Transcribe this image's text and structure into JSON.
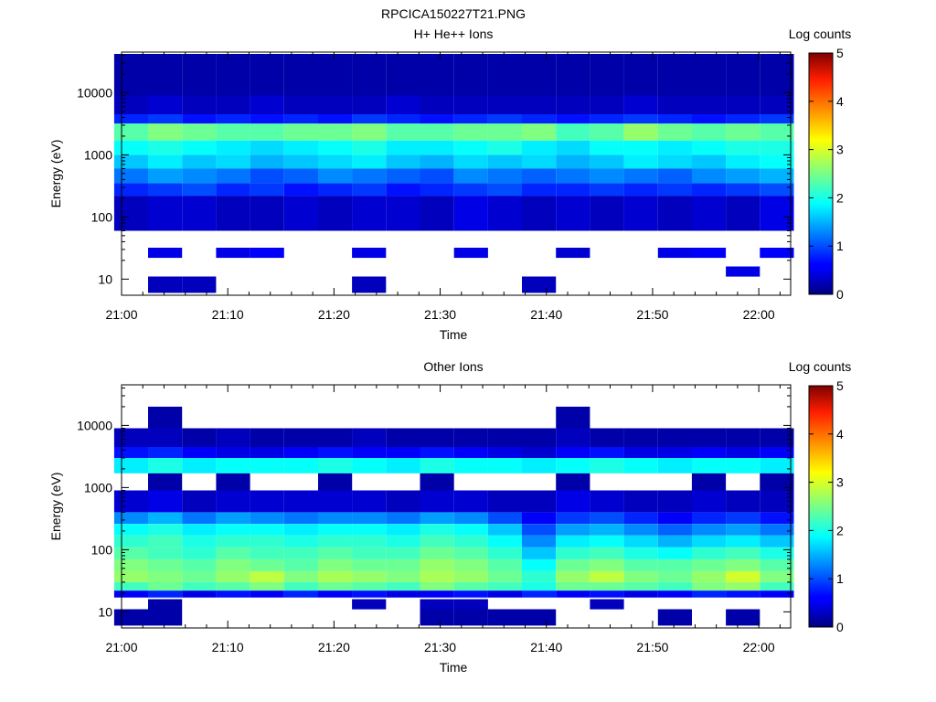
{
  "figure": {
    "title": "RPCICA150227T21.PNG"
  },
  "chart_data": [
    {
      "type": "heatmap",
      "title": "H+ He++ Ions",
      "xlabel": "Time",
      "ylabel": "Energy (eV)",
      "x_ticks": [
        "21:00",
        "21:10",
        "21:20",
        "21:30",
        "21:40",
        "21:50",
        "22:00"
      ],
      "y_ticks": [
        "10",
        "100",
        "1000",
        "10000"
      ],
      "y_scale": "log",
      "ylim": [
        5.5,
        45000
      ],
      "xlim_minutes": [
        0,
        63
      ],
      "colorbar": {
        "label": "Log counts",
        "ticks": [
          "0",
          "1",
          "2",
          "3",
          "4",
          "5"
        ],
        "range": [
          0,
          5
        ]
      },
      "time_columns_minutes": [
        0.9,
        4.1,
        7.3,
        10.5,
        13.7,
        16.9,
        20.1,
        23.3,
        26.5,
        29.7,
        32.9,
        36.1,
        39.3,
        42.5,
        45.7,
        48.9,
        52.1,
        55.3,
        58.5,
        61.7
      ],
      "bands": [
        {
          "from": 6,
          "to": 11,
          "log_counts": [
            -1,
            0.3,
            0.3,
            -1,
            -1,
            -1,
            -1,
            0.3,
            -1,
            -1,
            -1,
            -1,
            0.3,
            -1,
            -1,
            -1,
            -1,
            -1,
            -1,
            -1
          ]
        },
        {
          "from": 11,
          "to": 16,
          "log_counts": [
            -1,
            -1,
            -1,
            -1,
            -1,
            -1,
            -1,
            -1,
            -1,
            -1,
            -1,
            -1,
            -1,
            -1,
            -1,
            -1,
            -1,
            -1,
            0.5,
            -1
          ]
        },
        {
          "from": 22,
          "to": 32,
          "log_counts": [
            -1,
            0.5,
            -1,
            0.5,
            0.6,
            -1,
            -1,
            0.5,
            -1,
            -1,
            0.5,
            -1,
            -1,
            0.4,
            -1,
            -1,
            0.5,
            0.6,
            -1,
            0.6
          ]
        },
        {
          "from": 60,
          "to": 220,
          "log_counts": [
            0.3,
            0.4,
            0.4,
            0.3,
            0.3,
            0.4,
            0.3,
            0.4,
            0.4,
            0.3,
            0.5,
            0.4,
            0.3,
            0.4,
            0.3,
            0.4,
            0.3,
            0.4,
            0.3,
            0.5
          ]
        },
        {
          "from": 220,
          "to": 350,
          "log_counts": [
            0.8,
            0.9,
            1.0,
            0.8,
            0.9,
            0.7,
            0.8,
            0.9,
            0.7,
            0.8,
            0.9,
            1.0,
            0.8,
            0.8,
            0.9,
            0.8,
            0.9,
            0.8,
            0.9,
            1.0
          ]
        },
        {
          "from": 350,
          "to": 600,
          "log_counts": [
            1.2,
            1.4,
            1.3,
            1.2,
            1.0,
            1.1,
            1.3,
            1.2,
            1.1,
            1.0,
            1.3,
            1.2,
            1.1,
            1.2,
            1.3,
            1.2,
            1.1,
            1.3,
            1.4,
            1.5
          ]
        },
        {
          "from": 600,
          "to": 1000,
          "log_counts": [
            1.6,
            1.8,
            1.6,
            1.7,
            1.5,
            1.6,
            1.7,
            1.8,
            1.6,
            1.5,
            1.7,
            1.6,
            1.7,
            1.5,
            1.6,
            1.8,
            1.7,
            1.6,
            1.8,
            1.9
          ]
        },
        {
          "from": 1000,
          "to": 1700,
          "log_counts": [
            1.9,
            2.0,
            1.9,
            1.8,
            1.7,
            1.8,
            1.9,
            2.0,
            1.8,
            1.8,
            1.9,
            2.0,
            1.8,
            1.7,
            1.9,
            1.9,
            1.8,
            1.9,
            2.0,
            2.0
          ]
        },
        {
          "from": 1700,
          "to": 3200,
          "log_counts": [
            2.3,
            2.5,
            2.4,
            2.3,
            2.3,
            2.4,
            2.4,
            2.5,
            2.3,
            2.3,
            2.4,
            2.4,
            2.5,
            2.2,
            2.3,
            2.6,
            2.4,
            2.3,
            2.4,
            2.3
          ]
        },
        {
          "from": 3200,
          "to": 4500,
          "log_counts": [
            0.8,
            0.9,
            0.7,
            0.8,
            0.7,
            0.8,
            0.7,
            0.9,
            0.8,
            0.7,
            0.8,
            0.9,
            0.8,
            0.7,
            0.8,
            0.9,
            0.8,
            0.7,
            0.8,
            0.9
          ]
        },
        {
          "from": 4500,
          "to": 9000,
          "log_counts": [
            0.3,
            0.4,
            0.3,
            0.3,
            0.4,
            0.3,
            0.3,
            0.3,
            0.4,
            0.3,
            0.3,
            0.3,
            0.3,
            0.3,
            0.3,
            0.4,
            0.3,
            0.3,
            0.3,
            0.3
          ]
        },
        {
          "from": 9000,
          "to": 42000,
          "log_counts": [
            0.2,
            0.2,
            0.2,
            0.2,
            0.2,
            0.2,
            0.2,
            0.2,
            0.2,
            0.2,
            0.2,
            0.2,
            0.2,
            0.2,
            0.2,
            0.2,
            0.2,
            0.2,
            0.2,
            0.2
          ]
        }
      ]
    },
    {
      "type": "heatmap",
      "title": "Other Ions",
      "xlabel": "Time",
      "ylabel": "Energy (eV)",
      "x_ticks": [
        "21:00",
        "21:10",
        "21:20",
        "21:30",
        "21:40",
        "21:50",
        "22:00"
      ],
      "y_ticks": [
        "10",
        "100",
        "1000",
        "10000"
      ],
      "y_scale": "log",
      "ylim": [
        5.5,
        45000
      ],
      "xlim_minutes": [
        0,
        63
      ],
      "colorbar": {
        "label": "Log counts",
        "ticks": [
          "0",
          "1",
          "2",
          "3",
          "4",
          "5"
        ],
        "range": [
          0,
          5
        ]
      },
      "time_columns_minutes": [
        0.9,
        4.1,
        7.3,
        10.5,
        13.7,
        16.9,
        20.1,
        23.3,
        26.5,
        29.7,
        32.9,
        36.1,
        39.3,
        42.5,
        45.7,
        48.9,
        52.1,
        55.3,
        58.5,
        61.7
      ],
      "bands": [
        {
          "from": 6,
          "to": 11,
          "log_counts": [
            0.2,
            0.2,
            -1,
            -1,
            -1,
            -1,
            -1,
            -1,
            -1,
            0.2,
            0.2,
            0.2,
            0.2,
            -1,
            -1,
            -1,
            0.2,
            -1,
            0.2,
            -1
          ]
        },
        {
          "from": 11,
          "to": 16,
          "log_counts": [
            -1,
            0.2,
            -1,
            -1,
            -1,
            -1,
            -1,
            0.3,
            -1,
            0.3,
            0.3,
            -1,
            -1,
            -1,
            0.3,
            -1,
            -1,
            -1,
            -1,
            -1
          ]
        },
        {
          "from": 17,
          "to": 22,
          "log_counts": [
            0.6,
            0.8,
            0.5,
            0.7,
            0.6,
            0.8,
            0.6,
            0.7,
            0.5,
            0.6,
            0.7,
            0.5,
            0.8,
            0.6,
            0.7,
            0.5,
            0.6,
            0.8,
            0.7,
            0.6
          ]
        },
        {
          "from": 22,
          "to": 30,
          "log_counts": [
            2.2,
            2.4,
            2.2,
            2.3,
            2.5,
            2.2,
            2.4,
            2.3,
            2.2,
            2.5,
            2.3,
            2.2,
            2.0,
            2.4,
            2.4,
            2.3,
            2.2,
            2.5,
            2.6,
            2.2
          ]
        },
        {
          "from": 30,
          "to": 45,
          "log_counts": [
            2.6,
            2.5,
            2.4,
            2.6,
            2.8,
            2.5,
            2.7,
            2.6,
            2.5,
            2.7,
            2.6,
            2.4,
            2.1,
            2.6,
            2.8,
            2.5,
            2.4,
            2.6,
            2.9,
            2.5
          ]
        },
        {
          "from": 45,
          "to": 70,
          "log_counts": [
            2.5,
            2.4,
            2.3,
            2.5,
            2.4,
            2.3,
            2.5,
            2.4,
            2.4,
            2.6,
            2.5,
            2.3,
            1.9,
            2.4,
            2.5,
            2.3,
            2.3,
            2.4,
            2.5,
            2.3
          ]
        },
        {
          "from": 70,
          "to": 110,
          "log_counts": [
            2.3,
            2.2,
            2.1,
            2.3,
            2.2,
            2.2,
            2.3,
            2.2,
            2.2,
            2.4,
            2.3,
            2.1,
            1.6,
            2.1,
            2.2,
            2.0,
            1.9,
            2.1,
            2.2,
            2.0
          ]
        },
        {
          "from": 110,
          "to": 170,
          "log_counts": [
            2.1,
            2.2,
            2.0,
            2.1,
            2.1,
            2.0,
            2.1,
            2.1,
            2.0,
            2.2,
            2.1,
            1.9,
            1.3,
            1.8,
            1.9,
            1.7,
            1.5,
            1.7,
            1.8,
            1.6
          ]
        },
        {
          "from": 170,
          "to": 260,
          "log_counts": [
            1.9,
            2.0,
            1.8,
            1.9,
            1.9,
            1.8,
            1.9,
            1.9,
            1.8,
            2.0,
            1.9,
            1.6,
            1.0,
            1.4,
            1.5,
            1.3,
            1.1,
            1.3,
            1.4,
            1.2
          ]
        },
        {
          "from": 260,
          "to": 400,
          "log_counts": [
            1.3,
            1.5,
            1.2,
            1.4,
            1.3,
            1.2,
            1.3,
            1.3,
            1.2,
            1.4,
            1.3,
            1.0,
            0.6,
            0.9,
            1.0,
            0.8,
            0.6,
            0.8,
            0.9,
            0.7
          ]
        },
        {
          "from": 400,
          "to": 900,
          "log_counts": [
            0.4,
            0.5,
            0.3,
            0.4,
            0.4,
            0.4,
            0.4,
            0.4,
            0.3,
            0.4,
            0.4,
            0.3,
            0.3,
            0.5,
            0.4,
            0.3,
            0.3,
            0.4,
            0.3,
            0.3
          ]
        },
        {
          "from": 900,
          "to": 1700,
          "log_counts": [
            -1,
            0.2,
            -1,
            0.2,
            -1,
            -1,
            0.2,
            -1,
            -1,
            0.2,
            -1,
            -1,
            -1,
            0.2,
            -1,
            -1,
            -1,
            0.2,
            -1,
            0.2
          ]
        },
        {
          "from": 1700,
          "to": 3000,
          "log_counts": [
            1.8,
            2.0,
            1.8,
            1.9,
            1.9,
            1.9,
            2.0,
            1.9,
            1.8,
            2.0,
            1.9,
            1.9,
            1.8,
            1.9,
            2.0,
            1.9,
            1.8,
            1.9,
            1.9,
            1.8
          ]
        },
        {
          "from": 3000,
          "to": 4500,
          "log_counts": [
            0.7,
            0.8,
            0.6,
            0.5,
            0.5,
            0.6,
            0.7,
            0.6,
            0.6,
            0.7,
            0.6,
            0.5,
            0.4,
            0.6,
            0.7,
            0.5,
            0.5,
            0.6,
            0.5,
            0.6
          ]
        },
        {
          "from": 4500,
          "to": 9000,
          "log_counts": [
            0.3,
            0.3,
            0.2,
            0.3,
            0.2,
            0.2,
            0.2,
            0.3,
            0.2,
            0.2,
            0.2,
            0.2,
            0.2,
            0.3,
            0.2,
            0.2,
            0.2,
            0.2,
            0.2,
            0.2
          ]
        },
        {
          "from": 9000,
          "to": 20000,
          "log_counts": [
            -1,
            0.2,
            -1,
            -1,
            -1,
            -1,
            -1,
            -1,
            -1,
            -1,
            -1,
            -1,
            -1,
            0.2,
            -1,
            -1,
            -1,
            -1,
            -1,
            -1
          ]
        }
      ]
    }
  ]
}
